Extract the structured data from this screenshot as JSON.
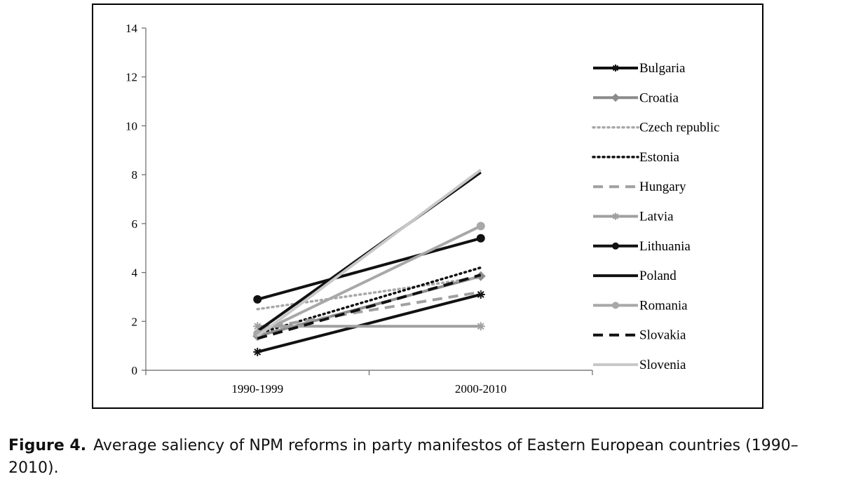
{
  "caption": {
    "label": "Figure 4.",
    "text": "Average saliency of NPM reforms in party manifestos of Eastern European countries (1990–2010)."
  },
  "chart_data": {
    "type": "line",
    "categories": [
      "1990-1999",
      "2000-2010"
    ],
    "ylim": [
      0,
      14
    ],
    "yticks": [
      0,
      2,
      4,
      6,
      8,
      10,
      12,
      14
    ],
    "grid": false,
    "legend_position": "right",
    "series": [
      {
        "name": "Bulgaria",
        "values": [
          0.75,
          3.1
        ],
        "color": "#111111",
        "dash": "solid",
        "marker": "star"
      },
      {
        "name": "Croatia",
        "values": [
          1.4,
          3.85
        ],
        "color": "#8c8c8c",
        "dash": "solid",
        "marker": "diamond"
      },
      {
        "name": "Czech republic",
        "values": [
          2.5,
          3.8
        ],
        "color": "#a8a8a8",
        "dash": "dot",
        "marker": "none"
      },
      {
        "name": "Estonia",
        "values": [
          1.5,
          4.2
        ],
        "color": "#111111",
        "dash": "dot",
        "marker": "none"
      },
      {
        "name": "Hungary",
        "values": [
          1.7,
          3.2
        ],
        "color": "#a0a0a0",
        "dash": "dash",
        "marker": "none"
      },
      {
        "name": "Latvia",
        "values": [
          1.8,
          1.8
        ],
        "color": "#a0a0a0",
        "dash": "solid",
        "marker": "star"
      },
      {
        "name": "Lithuania",
        "values": [
          2.9,
          5.4
        ],
        "color": "#111111",
        "dash": "solid",
        "marker": "circle"
      },
      {
        "name": "Poland",
        "values": [
          1.6,
          8.1
        ],
        "color": "#111111",
        "dash": "solid",
        "marker": "none"
      },
      {
        "name": "Romania",
        "values": [
          1.5,
          5.9
        ],
        "color": "#a8a8a8",
        "dash": "solid",
        "marker": "circle"
      },
      {
        "name": "Slovakia",
        "values": [
          1.3,
          3.9
        ],
        "color": "#111111",
        "dash": "dash",
        "marker": "none"
      },
      {
        "name": "Slovenia",
        "values": [
          1.4,
          8.2
        ],
        "color": "#c8c8c8",
        "dash": "solid",
        "marker": "none"
      }
    ]
  }
}
